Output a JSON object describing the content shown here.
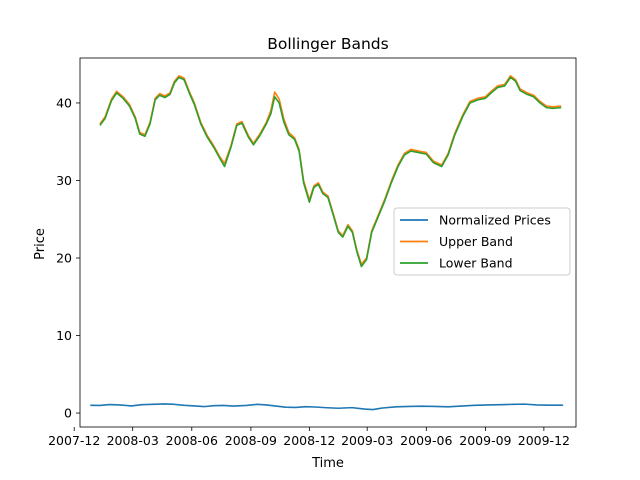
{
  "chart_data": {
    "type": "line",
    "title": "Bollinger Bands",
    "xlabel": "Time",
    "ylabel": "Price",
    "xlim": [
      "2007-12-10",
      "2010-01-20"
    ],
    "ylim": [
      -1.8,
      45.8
    ],
    "x_ticks": [
      "2007-12",
      "2008-03",
      "2008-06",
      "2008-09",
      "2008-12",
      "2009-03",
      "2009-06",
      "2009-09",
      "2009-12"
    ],
    "y_ticks": [
      0,
      10,
      20,
      30,
      40
    ],
    "legend_position": "center-right",
    "series": [
      {
        "name": "Normalized Prices",
        "color": "#1f77b4",
        "points": [
          [
            "2007-12-26",
            1.0
          ],
          [
            "2008-01-10",
            0.98
          ],
          [
            "2008-01-25",
            1.1
          ],
          [
            "2008-02-10",
            1.05
          ],
          [
            "2008-02-28",
            0.92
          ],
          [
            "2008-03-15",
            1.08
          ],
          [
            "2008-04-01",
            1.12
          ],
          [
            "2008-04-20",
            1.18
          ],
          [
            "2008-05-05",
            1.12
          ],
          [
            "2008-05-20",
            1.0
          ],
          [
            "2008-06-05",
            0.92
          ],
          [
            "2008-06-20",
            0.83
          ],
          [
            "2008-07-05",
            0.95
          ],
          [
            "2008-07-20",
            0.98
          ],
          [
            "2008-08-05",
            0.9
          ],
          [
            "2008-08-25",
            0.98
          ],
          [
            "2008-09-10",
            1.12
          ],
          [
            "2008-09-25",
            1.05
          ],
          [
            "2008-10-10",
            0.9
          ],
          [
            "2008-10-25",
            0.75
          ],
          [
            "2008-11-10",
            0.72
          ],
          [
            "2008-11-25",
            0.82
          ],
          [
            "2008-12-10",
            0.78
          ],
          [
            "2008-12-25",
            0.7
          ],
          [
            "2009-01-15",
            0.62
          ],
          [
            "2009-02-05",
            0.7
          ],
          [
            "2009-02-25",
            0.52
          ],
          [
            "2009-03-10",
            0.45
          ],
          [
            "2009-03-25",
            0.65
          ],
          [
            "2009-04-15",
            0.8
          ],
          [
            "2009-05-05",
            0.85
          ],
          [
            "2009-05-25",
            0.88
          ],
          [
            "2009-06-15",
            0.85
          ],
          [
            "2009-07-05",
            0.8
          ],
          [
            "2009-07-25",
            0.9
          ],
          [
            "2009-08-15",
            1.0
          ],
          [
            "2009-09-05",
            1.05
          ],
          [
            "2009-09-25",
            1.08
          ],
          [
            "2009-10-15",
            1.12
          ],
          [
            "2009-11-01",
            1.15
          ],
          [
            "2009-11-20",
            1.05
          ],
          [
            "2009-12-10",
            1.02
          ],
          [
            "2009-12-31",
            1.02
          ]
        ]
      },
      {
        "name": "Upper Band",
        "color": "#ff7f0e",
        "points": [
          [
            "2008-01-10",
            37.3
          ],
          [
            "2008-01-18",
            38.2
          ],
          [
            "2008-01-28",
            40.5
          ],
          [
            "2008-02-05",
            41.5
          ],
          [
            "2008-02-15",
            40.8
          ],
          [
            "2008-02-25",
            39.8
          ],
          [
            "2008-03-05",
            38.2
          ],
          [
            "2008-03-12",
            36.2
          ],
          [
            "2008-03-20",
            35.9
          ],
          [
            "2008-03-28",
            37.5
          ],
          [
            "2008-04-05",
            40.6
          ],
          [
            "2008-04-12",
            41.2
          ],
          [
            "2008-04-20",
            40.9
          ],
          [
            "2008-04-28",
            41.3
          ],
          [
            "2008-05-05",
            42.8
          ],
          [
            "2008-05-12",
            43.5
          ],
          [
            "2008-05-20",
            43.2
          ],
          [
            "2008-05-28",
            41.5
          ],
          [
            "2008-06-05",
            40.0
          ],
          [
            "2008-06-15",
            37.5
          ],
          [
            "2008-06-25",
            35.8
          ],
          [
            "2008-07-05",
            34.5
          ],
          [
            "2008-07-15",
            33.0
          ],
          [
            "2008-07-22",
            32.2
          ],
          [
            "2008-08-01",
            34.5
          ],
          [
            "2008-08-10",
            37.3
          ],
          [
            "2008-08-18",
            37.6
          ],
          [
            "2008-08-28",
            35.8
          ],
          [
            "2008-09-05",
            34.8
          ],
          [
            "2008-09-15",
            36.0
          ],
          [
            "2008-09-25",
            37.5
          ],
          [
            "2008-10-02",
            39.0
          ],
          [
            "2008-10-08",
            41.4
          ],
          [
            "2008-10-15",
            40.5
          ],
          [
            "2008-10-22",
            38.0
          ],
          [
            "2008-10-30",
            36.2
          ],
          [
            "2008-11-08",
            35.5
          ],
          [
            "2008-11-15",
            34.0
          ],
          [
            "2008-11-22",
            30.0
          ],
          [
            "2008-12-01",
            27.5
          ],
          [
            "2008-12-08",
            29.3
          ],
          [
            "2008-12-15",
            29.7
          ],
          [
            "2008-12-22",
            28.5
          ],
          [
            "2008-12-30",
            28.0
          ],
          [
            "2009-01-08",
            25.5
          ],
          [
            "2009-01-15",
            23.5
          ],
          [
            "2009-01-22",
            22.9
          ],
          [
            "2009-01-30",
            24.3
          ],
          [
            "2009-02-06",
            23.5
          ],
          [
            "2009-02-13",
            21.0
          ],
          [
            "2009-02-20",
            19.2
          ],
          [
            "2009-02-28",
            20.0
          ],
          [
            "2009-03-08",
            23.5
          ],
          [
            "2009-03-18",
            25.5
          ],
          [
            "2009-03-28",
            27.5
          ],
          [
            "2009-04-08",
            30.0
          ],
          [
            "2009-04-18",
            32.0
          ],
          [
            "2009-04-28",
            33.5
          ],
          [
            "2009-05-08",
            34.0
          ],
          [
            "2009-05-20",
            33.8
          ],
          [
            "2009-06-01",
            33.6
          ],
          [
            "2009-06-12",
            32.5
          ],
          [
            "2009-06-25",
            32.0
          ],
          [
            "2009-07-05",
            33.5
          ],
          [
            "2009-07-15",
            36.0
          ],
          [
            "2009-07-28",
            38.5
          ],
          [
            "2009-08-08",
            40.2
          ],
          [
            "2009-08-20",
            40.6
          ],
          [
            "2009-09-01",
            40.8
          ],
          [
            "2009-09-10",
            41.5
          ],
          [
            "2009-09-20",
            42.2
          ],
          [
            "2009-10-01",
            42.4
          ],
          [
            "2009-10-10",
            43.5
          ],
          [
            "2009-10-18",
            43.0
          ],
          [
            "2009-10-25",
            41.8
          ],
          [
            "2009-11-05",
            41.3
          ],
          [
            "2009-11-15",
            41.0
          ],
          [
            "2009-11-25",
            40.2
          ],
          [
            "2009-12-05",
            39.6
          ],
          [
            "2009-12-15",
            39.5
          ],
          [
            "2009-12-28",
            39.6
          ]
        ]
      },
      {
        "name": "Lower Band",
        "color": "#2ca02c",
        "points": [
          [
            "2008-01-10",
            37.1
          ],
          [
            "2008-01-18",
            38.0
          ],
          [
            "2008-01-28",
            40.3
          ],
          [
            "2008-02-05",
            41.3
          ],
          [
            "2008-02-15",
            40.6
          ],
          [
            "2008-02-25",
            39.6
          ],
          [
            "2008-03-05",
            38.0
          ],
          [
            "2008-03-12",
            36.0
          ],
          [
            "2008-03-20",
            35.7
          ],
          [
            "2008-03-28",
            37.3
          ],
          [
            "2008-04-05",
            40.4
          ],
          [
            "2008-04-12",
            41.0
          ],
          [
            "2008-04-20",
            40.7
          ],
          [
            "2008-04-28",
            41.1
          ],
          [
            "2008-05-05",
            42.6
          ],
          [
            "2008-05-12",
            43.3
          ],
          [
            "2008-05-20",
            43.0
          ],
          [
            "2008-05-28",
            41.3
          ],
          [
            "2008-06-05",
            39.8
          ],
          [
            "2008-06-15",
            37.3
          ],
          [
            "2008-06-25",
            35.6
          ],
          [
            "2008-07-05",
            34.3
          ],
          [
            "2008-07-15",
            32.8
          ],
          [
            "2008-07-22",
            31.8
          ],
          [
            "2008-08-01",
            34.3
          ],
          [
            "2008-08-10",
            37.1
          ],
          [
            "2008-08-18",
            37.4
          ],
          [
            "2008-08-28",
            35.6
          ],
          [
            "2008-09-05",
            34.6
          ],
          [
            "2008-09-15",
            35.8
          ],
          [
            "2008-09-25",
            37.3
          ],
          [
            "2008-10-02",
            38.6
          ],
          [
            "2008-10-08",
            40.8
          ],
          [
            "2008-10-15",
            40.0
          ],
          [
            "2008-10-22",
            37.6
          ],
          [
            "2008-10-30",
            35.9
          ],
          [
            "2008-11-08",
            35.3
          ],
          [
            "2008-11-15",
            33.8
          ],
          [
            "2008-11-22",
            29.7
          ],
          [
            "2008-12-01",
            27.2
          ],
          [
            "2008-12-08",
            29.1
          ],
          [
            "2008-12-15",
            29.5
          ],
          [
            "2008-12-22",
            28.3
          ],
          [
            "2008-12-30",
            27.8
          ],
          [
            "2009-01-08",
            25.3
          ],
          [
            "2009-01-15",
            23.3
          ],
          [
            "2009-01-22",
            22.7
          ],
          [
            "2009-01-30",
            24.1
          ],
          [
            "2009-02-06",
            23.3
          ],
          [
            "2009-02-13",
            20.8
          ],
          [
            "2009-02-20",
            18.9
          ],
          [
            "2009-02-28",
            19.8
          ],
          [
            "2009-03-08",
            23.3
          ],
          [
            "2009-03-18",
            25.3
          ],
          [
            "2009-03-28",
            27.3
          ],
          [
            "2009-04-08",
            29.8
          ],
          [
            "2009-04-18",
            31.8
          ],
          [
            "2009-04-28",
            33.3
          ],
          [
            "2009-05-08",
            33.8
          ],
          [
            "2009-05-20",
            33.6
          ],
          [
            "2009-06-01",
            33.4
          ],
          [
            "2009-06-12",
            32.3
          ],
          [
            "2009-06-25",
            31.8
          ],
          [
            "2009-07-05",
            33.3
          ],
          [
            "2009-07-15",
            35.8
          ],
          [
            "2009-07-28",
            38.3
          ],
          [
            "2009-08-08",
            40.0
          ],
          [
            "2009-08-20",
            40.4
          ],
          [
            "2009-09-01",
            40.6
          ],
          [
            "2009-09-10",
            41.3
          ],
          [
            "2009-09-20",
            42.0
          ],
          [
            "2009-10-01",
            42.2
          ],
          [
            "2009-10-10",
            43.3
          ],
          [
            "2009-10-18",
            42.8
          ],
          [
            "2009-10-25",
            41.6
          ],
          [
            "2009-11-05",
            41.1
          ],
          [
            "2009-11-15",
            40.8
          ],
          [
            "2009-11-25",
            40.0
          ],
          [
            "2009-12-05",
            39.4
          ],
          [
            "2009-12-15",
            39.3
          ],
          [
            "2009-12-28",
            39.4
          ]
        ]
      }
    ]
  }
}
